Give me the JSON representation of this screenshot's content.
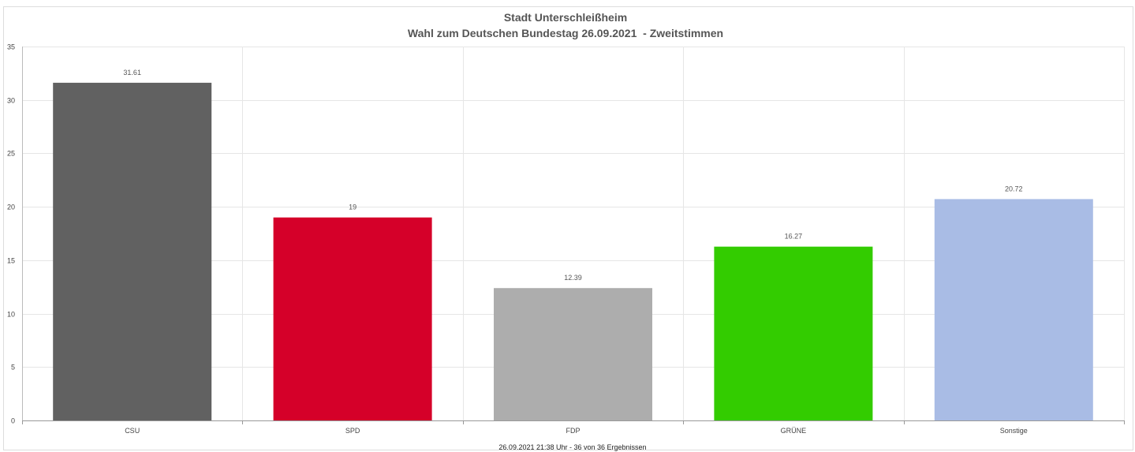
{
  "chart_data": {
    "type": "bar",
    "title": "Stadt Unterschleißheim",
    "subtitle": "Wahl zum Deutschen Bundestag 26.09.2021  - Zweitstimmen",
    "categories": [
      "CSU",
      "SPD",
      "FDP",
      "GRÜNE",
      "Sonstige"
    ],
    "values": [
      31.61,
      19,
      12.39,
      16.27,
      20.72
    ],
    "value_labels": [
      "31.61",
      "19",
      "12.39",
      "16.27",
      "20.72"
    ],
    "colors": [
      "#616161",
      "#d50029",
      "#adadad",
      "#33cc00",
      "#a9bce5"
    ],
    "ylim": [
      0,
      35
    ],
    "yticks": [
      "0",
      "5",
      "10",
      "15",
      "20",
      "25",
      "30",
      "35"
    ],
    "grid": true,
    "legend": "none",
    "footer": "26.09.2021 21:38 Uhr - 36 von 36 Ergebnissen"
  }
}
